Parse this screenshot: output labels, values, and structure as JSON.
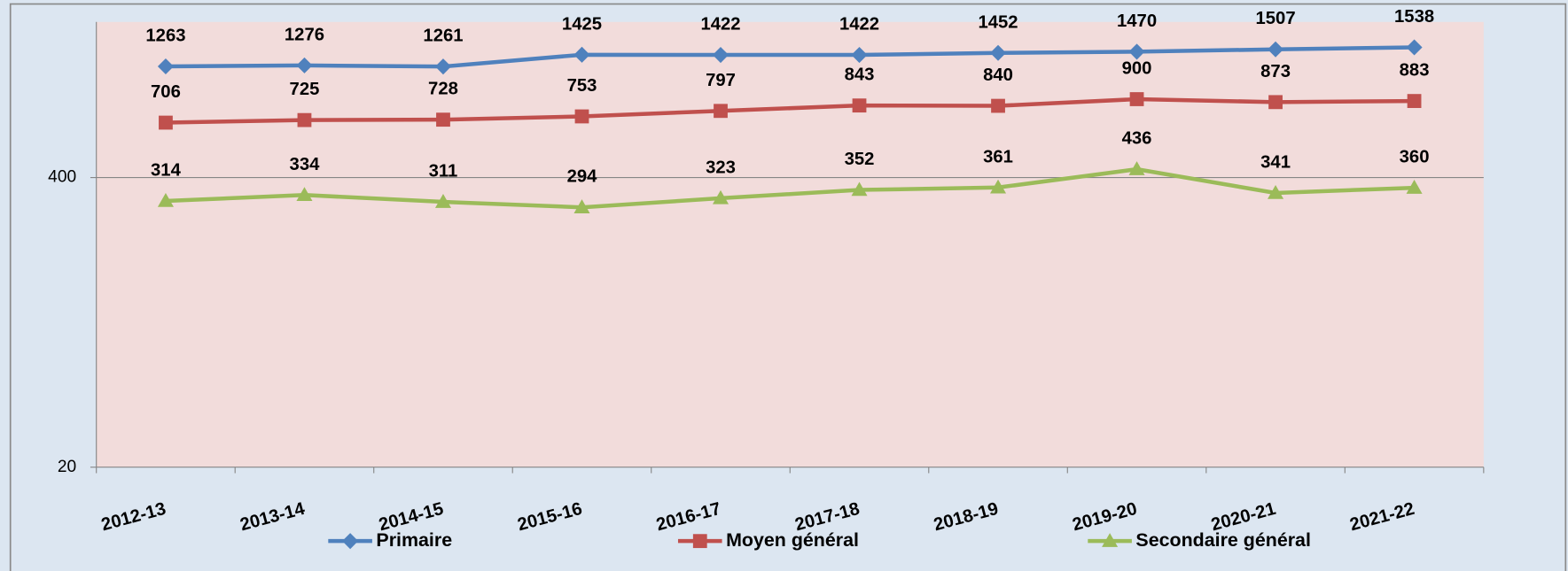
{
  "chart_data": {
    "type": "line",
    "categories": [
      "2012-13",
      "2013-14",
      "2014-15",
      "2015-16",
      "2016-17",
      "2017-18",
      "2018-19",
      "2019-20",
      "2020-21",
      "2021-22"
    ],
    "series": [
      {
        "name": "Primaire",
        "color": "#4f81bd",
        "values": [
          1263,
          1276,
          1261,
          1425,
          1422,
          1422,
          1452,
          1470,
          1507,
          1538
        ]
      },
      {
        "name": "Moyen général",
        "color": "#c0504d",
        "values": [
          706,
          725,
          728,
          753,
          797,
          843,
          840,
          900,
          873,
          883
        ]
      },
      {
        "name": "Secondaire général",
        "color": "#9bbb59",
        "values": [
          314,
          334,
          311,
          294,
          323,
          352,
          361,
          436,
          341,
          360
        ]
      }
    ],
    "ylim": [
      20,
      2000
    ],
    "yticks": [
      20,
      400
    ],
    "log_scale": true,
    "grid": true,
    "legend": "bottom"
  }
}
